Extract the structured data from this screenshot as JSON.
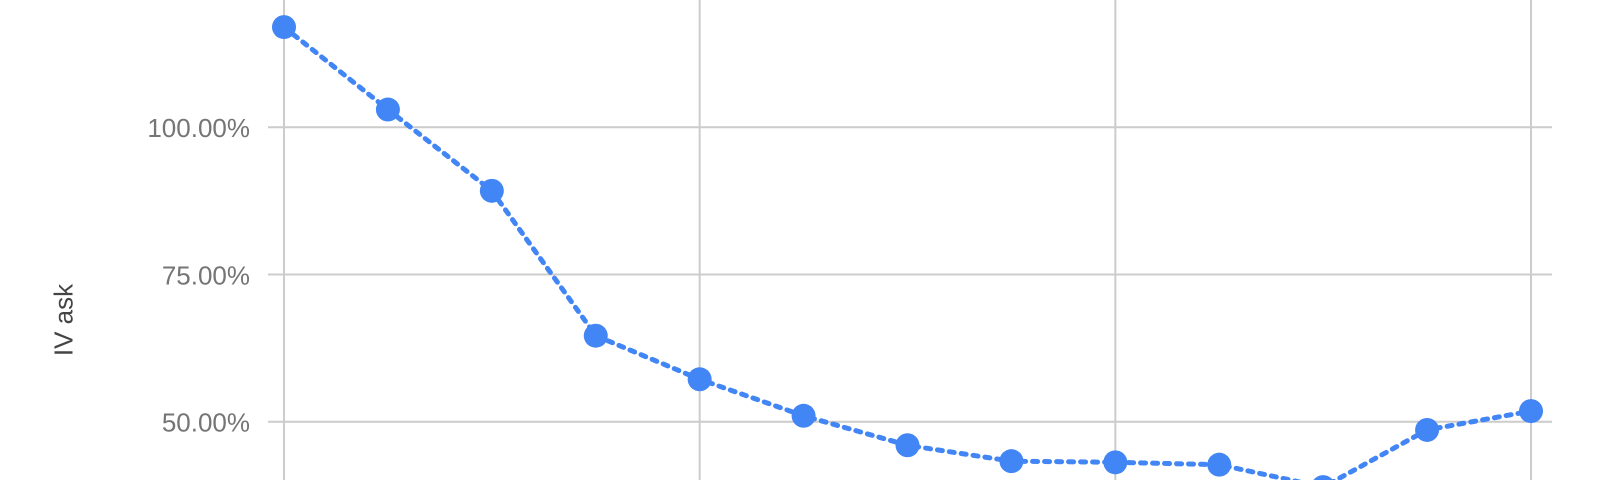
{
  "chart_data": {
    "type": "line",
    "title": "",
    "xlabel": "",
    "ylabel": "IV ask",
    "x": [
      0,
      1,
      2,
      3,
      4,
      5,
      6,
      7,
      8,
      9,
      10,
      11,
      12
    ],
    "series": [
      {
        "name": "IV ask",
        "values": [
          117.0,
          103.0,
          89.2,
          64.6,
          57.2,
          51.0,
          46.0,
          43.3,
          43.1,
          42.7,
          38.9,
          48.6,
          51.8
        ]
      }
    ],
    "yticks": [
      50,
      75,
      100
    ],
    "ytick_labels": [
      "50.00%",
      "75.00%",
      "100.00%"
    ],
    "xgrid": [
      0,
      4,
      8,
      12
    ],
    "ylim": [
      40.1,
      121.6
    ],
    "line_style": "dotted",
    "markers": true,
    "grid": true,
    "colors": {
      "series": "#4285f4",
      "grid": "#cccccc",
      "tick_text": "#757575"
    }
  }
}
